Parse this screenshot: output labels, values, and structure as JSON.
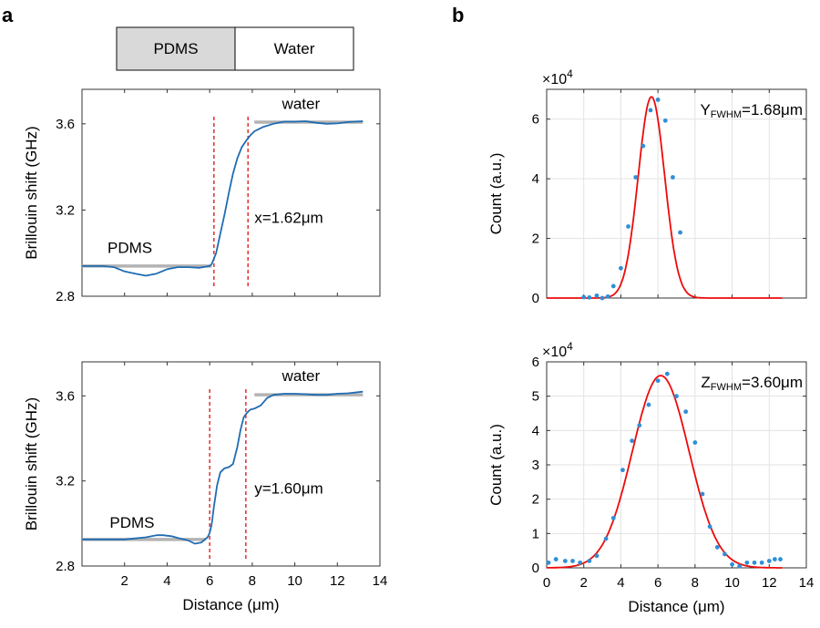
{
  "panel_a": {
    "label": "a",
    "legend_box": {
      "left_label": "PDMS",
      "right_label": "Water",
      "left_color": "#d9d9d9",
      "right_color": "#ffffff"
    }
  },
  "panel_b": {
    "label": "b"
  },
  "colors": {
    "curve": "#1f6cb3",
    "dashed": "#e0201b",
    "gray": "#b3b3b3",
    "fit": "#ee0a0a",
    "points": "#2f8fd6"
  },
  "chart_data": [
    {
      "id": "a-top",
      "type": "line",
      "ylabel": "Brillouin shift (GHz)",
      "xlabel": "",
      "xlim": [
        0,
        14
      ],
      "ylim": [
        2.8,
        3.76
      ],
      "xticks": [
        2,
        4,
        6,
        8,
        10,
        12,
        14
      ],
      "show_xticklabels": false,
      "yticks": [
        2.8,
        3.2,
        3.6
      ],
      "ytick_labels": [
        "2.8",
        "3.2",
        "3.6"
      ],
      "grid": false,
      "series": [
        {
          "name": "brillouin",
          "x": [
            0,
            1,
            1.5,
            2,
            2.5,
            3,
            3.5,
            4,
            4.5,
            5,
            5.5,
            6,
            6.1,
            6.3,
            6.5,
            6.7,
            6.9,
            7.1,
            7.3,
            7.5,
            7.7,
            7.9,
            8.1,
            8.5,
            9,
            9.5,
            10,
            10.5,
            11,
            11.5,
            12,
            12.5,
            13.2
          ],
          "y": [
            2.94,
            2.94,
            2.935,
            2.915,
            2.905,
            2.895,
            2.905,
            2.925,
            2.935,
            2.935,
            2.932,
            2.94,
            2.95,
            3.0,
            3.09,
            3.18,
            3.28,
            3.37,
            3.44,
            3.49,
            3.52,
            3.545,
            3.565,
            3.585,
            3.6,
            3.61,
            3.61,
            3.612,
            3.605,
            3.6,
            3.602,
            3.608,
            3.612
          ]
        }
      ],
      "dashed_lines_x": [
        6.2,
        7.8
      ],
      "reference_segments": [
        {
          "x": [
            0,
            6.1
          ],
          "y": 2.94
        },
        {
          "x": [
            8.1,
            13.2
          ],
          "y": 3.608
        }
      ],
      "annotations": [
        {
          "text": "water",
          "x": 9.4,
          "y": 3.67
        },
        {
          "text": "PDMS",
          "x": 1.2,
          "y": 3.0
        },
        {
          "text": "x=1.62μm",
          "x": 8.1,
          "y": 3.14
        }
      ]
    },
    {
      "id": "a-bottom",
      "type": "line",
      "ylabel": "Brillouin shift (GHz)",
      "xlabel": "Distance (μm)",
      "xlim": [
        0,
        14
      ],
      "ylim": [
        2.8,
        3.76
      ],
      "xticks": [
        2,
        4,
        6,
        8,
        10,
        12,
        14
      ],
      "xtick_labels": [
        "2",
        "4",
        "6",
        "8",
        "10",
        "12",
        "14"
      ],
      "yticks": [
        2.8,
        3.2,
        3.6
      ],
      "ytick_labels": [
        "2.8",
        "3.2",
        "3.6"
      ],
      "grid": false,
      "series": [
        {
          "name": "brillouin",
          "x": [
            0,
            0.5,
            1,
            2,
            2.5,
            3,
            3.5,
            3.8,
            4.2,
            4.6,
            5,
            5.3,
            5.6,
            5.9,
            6.0,
            6.1,
            6.2,
            6.35,
            6.5,
            6.7,
            6.9,
            7.1,
            7.3,
            7.45,
            7.6,
            7.75,
            7.9,
            8.1,
            8.4,
            8.7,
            9,
            9.5,
            10,
            10.5,
            11,
            11.5,
            12,
            12.5,
            13.2
          ],
          "y": [
            2.925,
            2.925,
            2.925,
            2.925,
            2.93,
            2.935,
            2.945,
            2.945,
            2.94,
            2.93,
            2.92,
            2.905,
            2.91,
            2.935,
            2.955,
            3.0,
            3.08,
            3.18,
            3.24,
            3.26,
            3.265,
            3.28,
            3.36,
            3.44,
            3.5,
            3.52,
            3.535,
            3.54,
            3.555,
            3.59,
            3.605,
            3.61,
            3.61,
            3.608,
            3.605,
            3.605,
            3.61,
            3.612,
            3.62
          ]
        }
      ],
      "dashed_lines_x": [
        6.0,
        7.7
      ],
      "reference_segments": [
        {
          "x": [
            0,
            5.8
          ],
          "y": 2.925
        },
        {
          "x": [
            8.1,
            13.2
          ],
          "y": 3.605
        }
      ],
      "annotations": [
        {
          "text": "water",
          "x": 9.4,
          "y": 3.67
        },
        {
          "text": "PDMS",
          "x": 1.3,
          "y": 2.98
        },
        {
          "text": "y=1.60μm",
          "x": 8.1,
          "y": 3.14
        }
      ]
    },
    {
      "id": "b-top",
      "type": "scatter",
      "ylabel": "Count (a.u.)",
      "xlabel": "",
      "exponent_label": "×10",
      "exponent_power": "4",
      "xlim": [
        0,
        14
      ],
      "ylim": [
        0,
        7
      ],
      "xticks": [
        0,
        2,
        4,
        6,
        8,
        10,
        12,
        14
      ],
      "show_xticklabels": false,
      "yticks": [
        0,
        2,
        4,
        6
      ],
      "ytick_labels": [
        "0",
        "2",
        "4",
        "6"
      ],
      "grid": true,
      "points": {
        "name": "measured",
        "x": [
          2.0,
          2.3,
          2.7,
          3.0,
          3.3,
          3.6,
          4.0,
          4.4,
          4.8,
          5.2,
          5.6,
          6.0,
          6.4,
          6.8,
          7.2
        ],
        "y": [
          0.03,
          0.02,
          0.08,
          0.0,
          0.05,
          0.4,
          1.0,
          2.4,
          4.05,
          5.1,
          6.3,
          6.65,
          5.95,
          4.05,
          2.2
        ]
      },
      "fit": {
        "name": "gaussian-fit",
        "amplitude": 6.75,
        "center": 5.65,
        "fwhm": 1.68,
        "x_range": [
          0,
          12.7
        ]
      },
      "label_prefix": "Y",
      "label_sub": "FWHM",
      "label_value": "=1.68μm"
    },
    {
      "id": "b-bottom",
      "type": "scatter",
      "ylabel": "Count (a.u.)",
      "xlabel": "Distance (μm)",
      "exponent_label": "×10",
      "exponent_power": "4",
      "xlim": [
        0,
        14
      ],
      "ylim": [
        0,
        6
      ],
      "xticks": [
        0,
        2,
        4,
        6,
        8,
        10,
        12,
        14
      ],
      "xtick_labels": [
        "0",
        "2",
        "4",
        "6",
        "8",
        "10",
        "12",
        "14"
      ],
      "yticks": [
        0,
        1,
        2,
        3,
        4,
        5,
        6
      ],
      "ytick_labels": [
        "0",
        "1",
        "2",
        "3",
        "4",
        "5",
        "6"
      ],
      "grid": true,
      "points": {
        "name": "measured",
        "x": [
          0.1,
          0.5,
          1.0,
          1.4,
          1.8,
          2.3,
          2.7,
          3.2,
          3.6,
          4.1,
          4.6,
          5.0,
          5.5,
          6.0,
          6.5,
          7.0,
          7.5,
          8.0,
          8.4,
          8.8,
          9.2,
          9.6,
          10.0,
          10.4,
          10.8,
          11.2,
          11.6,
          12.0,
          12.3,
          12.6
        ],
        "y": [
          0.15,
          0.25,
          0.2,
          0.2,
          0.15,
          0.2,
          0.35,
          0.85,
          1.45,
          2.85,
          3.7,
          4.15,
          4.75,
          5.45,
          5.65,
          5.0,
          4.55,
          3.65,
          2.15,
          1.2,
          0.6,
          0.4,
          0.1,
          0.05,
          0.15,
          0.15,
          0.15,
          0.2,
          0.25,
          0.25
        ]
      },
      "fit": {
        "name": "gaussian-fit",
        "amplitude": 5.6,
        "center": 6.15,
        "fwhm": 3.6,
        "x_range": [
          0,
          12.7
        ]
      },
      "label_prefix": "Z",
      "label_sub": "FWHM",
      "label_value": "=3.60μm"
    }
  ]
}
